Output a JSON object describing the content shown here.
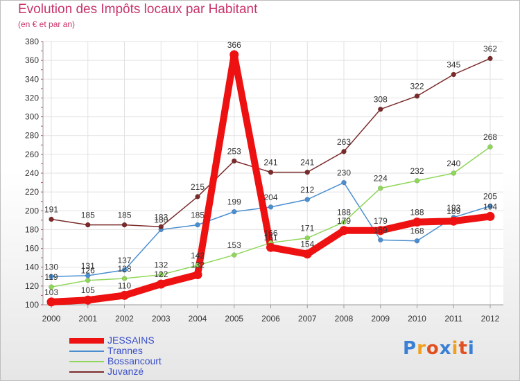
{
  "title": "Evolution des Impôts locaux par Habitant",
  "subtitle": "(en € et par an)",
  "logo": {
    "text": "Proxiti",
    "letter_colors": [
      "#3a7fd5",
      "#f0a020",
      "#e05020",
      "#3a7fd5",
      "#f0a020",
      "#e05020",
      "#3a7fd5"
    ]
  },
  "chart_data": {
    "type": "line",
    "title": "Evolution des Impôts locaux par Habitant",
    "ylabel": "(en € et par an)",
    "xlabel": "",
    "categories": [
      "2000",
      "2001",
      "2002",
      "2003",
      "2004",
      "2005",
      "2006",
      "2007",
      "2008",
      "2009",
      "2010",
      "2011",
      "2012"
    ],
    "y_ticks": [
      "100",
      "120",
      "140",
      "160",
      "180",
      "200",
      "220",
      "240",
      "260",
      "280",
      "300",
      "320",
      "340",
      "360",
      "380"
    ],
    "ylim": [
      100,
      380
    ],
    "grid": true,
    "series": [
      {
        "name": "JESSAINS",
        "color": "#ee1111",
        "emphasis": true,
        "values": [
          103,
          105,
          110,
          122,
          132,
          366,
          161,
          154,
          179,
          179,
          188,
          189,
          194
        ],
        "labels": [
          "103",
          "105",
          "110",
          "122",
          "132",
          "366",
          "161",
          "154",
          "179",
          "179",
          "188",
          "189",
          "194"
        ]
      },
      {
        "name": "Trannes",
        "color": "#4a8ed0",
        "values": [
          130,
          131,
          137,
          180,
          185,
          199,
          204,
          212,
          230,
          169,
          168,
          193,
          205
        ],
        "labels": [
          "130",
          "131",
          "137",
          "180",
          "185",
          "199",
          "204",
          "212",
          "230",
          "169",
          "168",
          "193",
          "205"
        ]
      },
      {
        "name": "Bossancourt",
        "color": "#8fd65a",
        "values": [
          119,
          126,
          128,
          132,
          142,
          153,
          166,
          171,
          188,
          224,
          232,
          240,
          268
        ],
        "labels": [
          "119",
          "126",
          "128",
          "132",
          "142",
          "153",
          "166",
          "171",
          "188",
          "224",
          "232",
          "240",
          "268"
        ]
      },
      {
        "name": "Juvanzé",
        "color": "#7a2a2a",
        "values": [
          191,
          185,
          185,
          183,
          215,
          253,
          241,
          241,
          263,
          308,
          322,
          345,
          362
        ],
        "labels": [
          "191",
          "185",
          "185",
          "183",
          "215",
          "253",
          "241",
          "241",
          "263",
          "308",
          "322",
          "345",
          "362"
        ]
      }
    ]
  }
}
